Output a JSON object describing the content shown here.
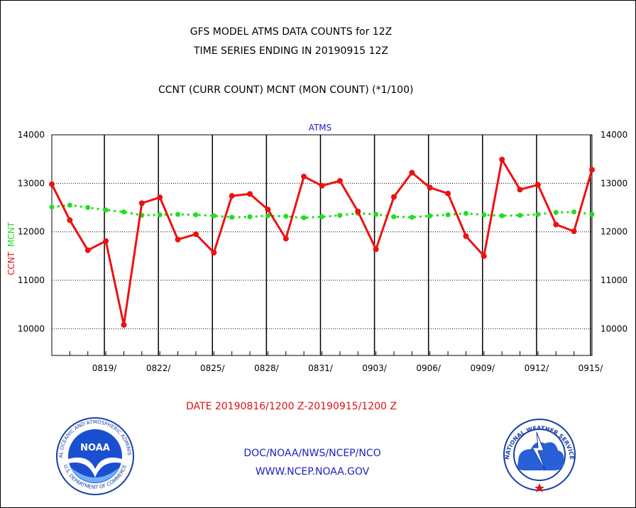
{
  "header": {
    "title_line1": "GFS MODEL ATMS DATA COUNTS for 12Z",
    "title_line2": "TIME SERIES ENDING IN 20190915 12Z",
    "subtitle": "CCNT (CURR COUNT) MCNT (MON COUNT) (*1/100)"
  },
  "footer": {
    "date_range": "DATE 20190816/1200 Z-20190915/1200 Z",
    "org": "DOC/NOAA/NWS/NCEP/NCO",
    "url": "WWW.NCEP.NOAA.GOV"
  },
  "logos": {
    "left": {
      "icon": "noaa-logo",
      "text": "NOAA",
      "ring_top": "NATIONAL OCEANIC AND ATMOSPHERIC ADMINISTRATION",
      "ring_bottom": "U.S. DEPARTMENT OF COMMERCE"
    },
    "right": {
      "icon": "national-weather-service-logo",
      "ring_text": "NATIONAL WEATHER SERVICE"
    }
  },
  "colors": {
    "ccnt": "#ee1111",
    "mcnt": "#22dd22",
    "frame": "#000000",
    "text_blue": "#2020c0"
  },
  "chart_data": {
    "type": "line",
    "plot_label": "ATMS",
    "ylabel_ccnt": "CCNT",
    "ylabel_mcnt": "MCNT",
    "ylim": [
      9450,
      14000
    ],
    "yticks": [
      10000,
      11000,
      12000,
      13000,
      14000
    ],
    "x_days": 31,
    "x_tick_labels": [
      {
        "day": 3,
        "label": "0819/"
      },
      {
        "day": 6,
        "label": "0822/"
      },
      {
        "day": 9,
        "label": "0825/"
      },
      {
        "day": 12,
        "label": "0828/"
      },
      {
        "day": 15,
        "label": "0831/"
      },
      {
        "day": 18,
        "label": "0903/"
      },
      {
        "day": 21,
        "label": "0906/"
      },
      {
        "day": 24,
        "label": "0909/"
      },
      {
        "day": 27,
        "label": "0912/"
      },
      {
        "day": 30,
        "label": "0915/"
      }
    ],
    "grid_horizontal": true,
    "series": [
      {
        "name": "CCNT",
        "values": [
          12980,
          12240,
          11620,
          11810,
          10080,
          12590,
          12710,
          11840,
          11950,
          11570,
          12740,
          12780,
          12460,
          11860,
          13140,
          12950,
          13050,
          12420,
          11640,
          12720,
          13220,
          12910,
          12790,
          11910,
          11500,
          13490,
          12870,
          12970,
          12150,
          12010,
          13280
        ]
      },
      {
        "name": "MCNT",
        "values": [
          12510,
          12550,
          12500,
          12450,
          12410,
          12340,
          12350,
          12360,
          12350,
          12330,
          12300,
          12310,
          12330,
          12320,
          12290,
          12310,
          12340,
          12380,
          12360,
          12310,
          12300,
          12330,
          12350,
          12380,
          12350,
          12330,
          12340,
          12360,
          12400,
          12410,
          12360
        ]
      }
    ]
  }
}
